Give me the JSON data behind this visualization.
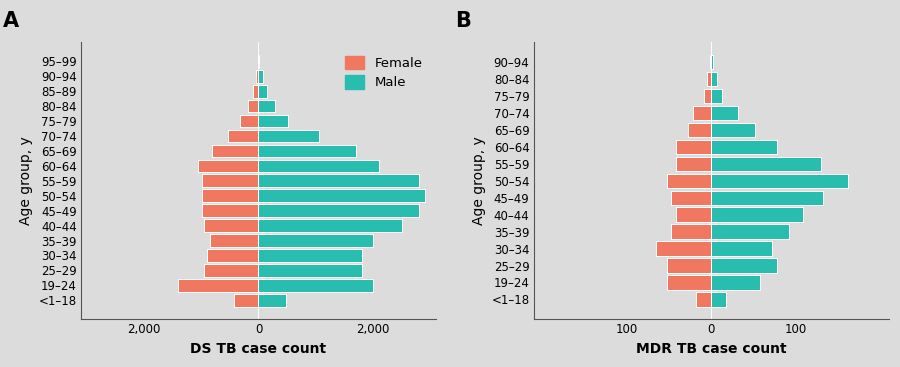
{
  "panel_A": {
    "title": "A",
    "xlabel": "DS TB case count",
    "ylabel": "Age group, y",
    "age_groups": [
      "<1–18",
      "19–24",
      "25–29",
      "30–34",
      "35–39",
      "40–44",
      "45–49",
      "50–54",
      "55–59",
      "60–64",
      "65–69",
      "70–74",
      "75–79",
      "80–84",
      "85–89",
      "90–94",
      "95–99"
    ],
    "female": [
      420,
      1400,
      950,
      900,
      850,
      950,
      980,
      980,
      980,
      1050,
      820,
      530,
      320,
      190,
      95,
      45,
      8
    ],
    "male": [
      480,
      2000,
      1800,
      1800,
      2000,
      2500,
      2800,
      2900,
      2800,
      2100,
      1700,
      1050,
      510,
      280,
      150,
      75,
      12
    ],
    "xlim": [
      -3100,
      3100
    ],
    "xticks": [
      -2000,
      0,
      2000
    ],
    "xticklabels": [
      "2,000",
      "0",
      "2,000"
    ],
    "female_color": "#F07860",
    "male_color": "#29BDB0",
    "background_color": "#DCDCDC"
  },
  "panel_B": {
    "title": "B",
    "xlabel": "MDR TB case count",
    "ylabel": "Age group, y",
    "age_groups": [
      "<1–18",
      "19–24",
      "25–29",
      "30–34",
      "35–39",
      "40–44",
      "45–49",
      "50–54",
      "55–59",
      "60–64",
      "65–69",
      "70–74",
      "75–79",
      "80–84",
      "90–94"
    ],
    "female": [
      18,
      52,
      52,
      65,
      48,
      42,
      48,
      52,
      42,
      42,
      28,
      22,
      8,
      5,
      2
    ],
    "male": [
      18,
      58,
      78,
      72,
      92,
      108,
      132,
      162,
      130,
      78,
      52,
      32,
      13,
      7,
      2
    ],
    "xlim": [
      -210,
      210
    ],
    "xticks": [
      -100,
      0,
      100
    ],
    "xticklabels": [
      "100",
      "0",
      "100"
    ],
    "female_color": "#F07860",
    "male_color": "#29BDB0",
    "background_color": "#DCDCDC"
  },
  "legend_labels": [
    "Female",
    "Male"
  ],
  "legend_colors": [
    "#F07860",
    "#29BDB0"
  ],
  "fig_facecolor": "#DCDCDC"
}
